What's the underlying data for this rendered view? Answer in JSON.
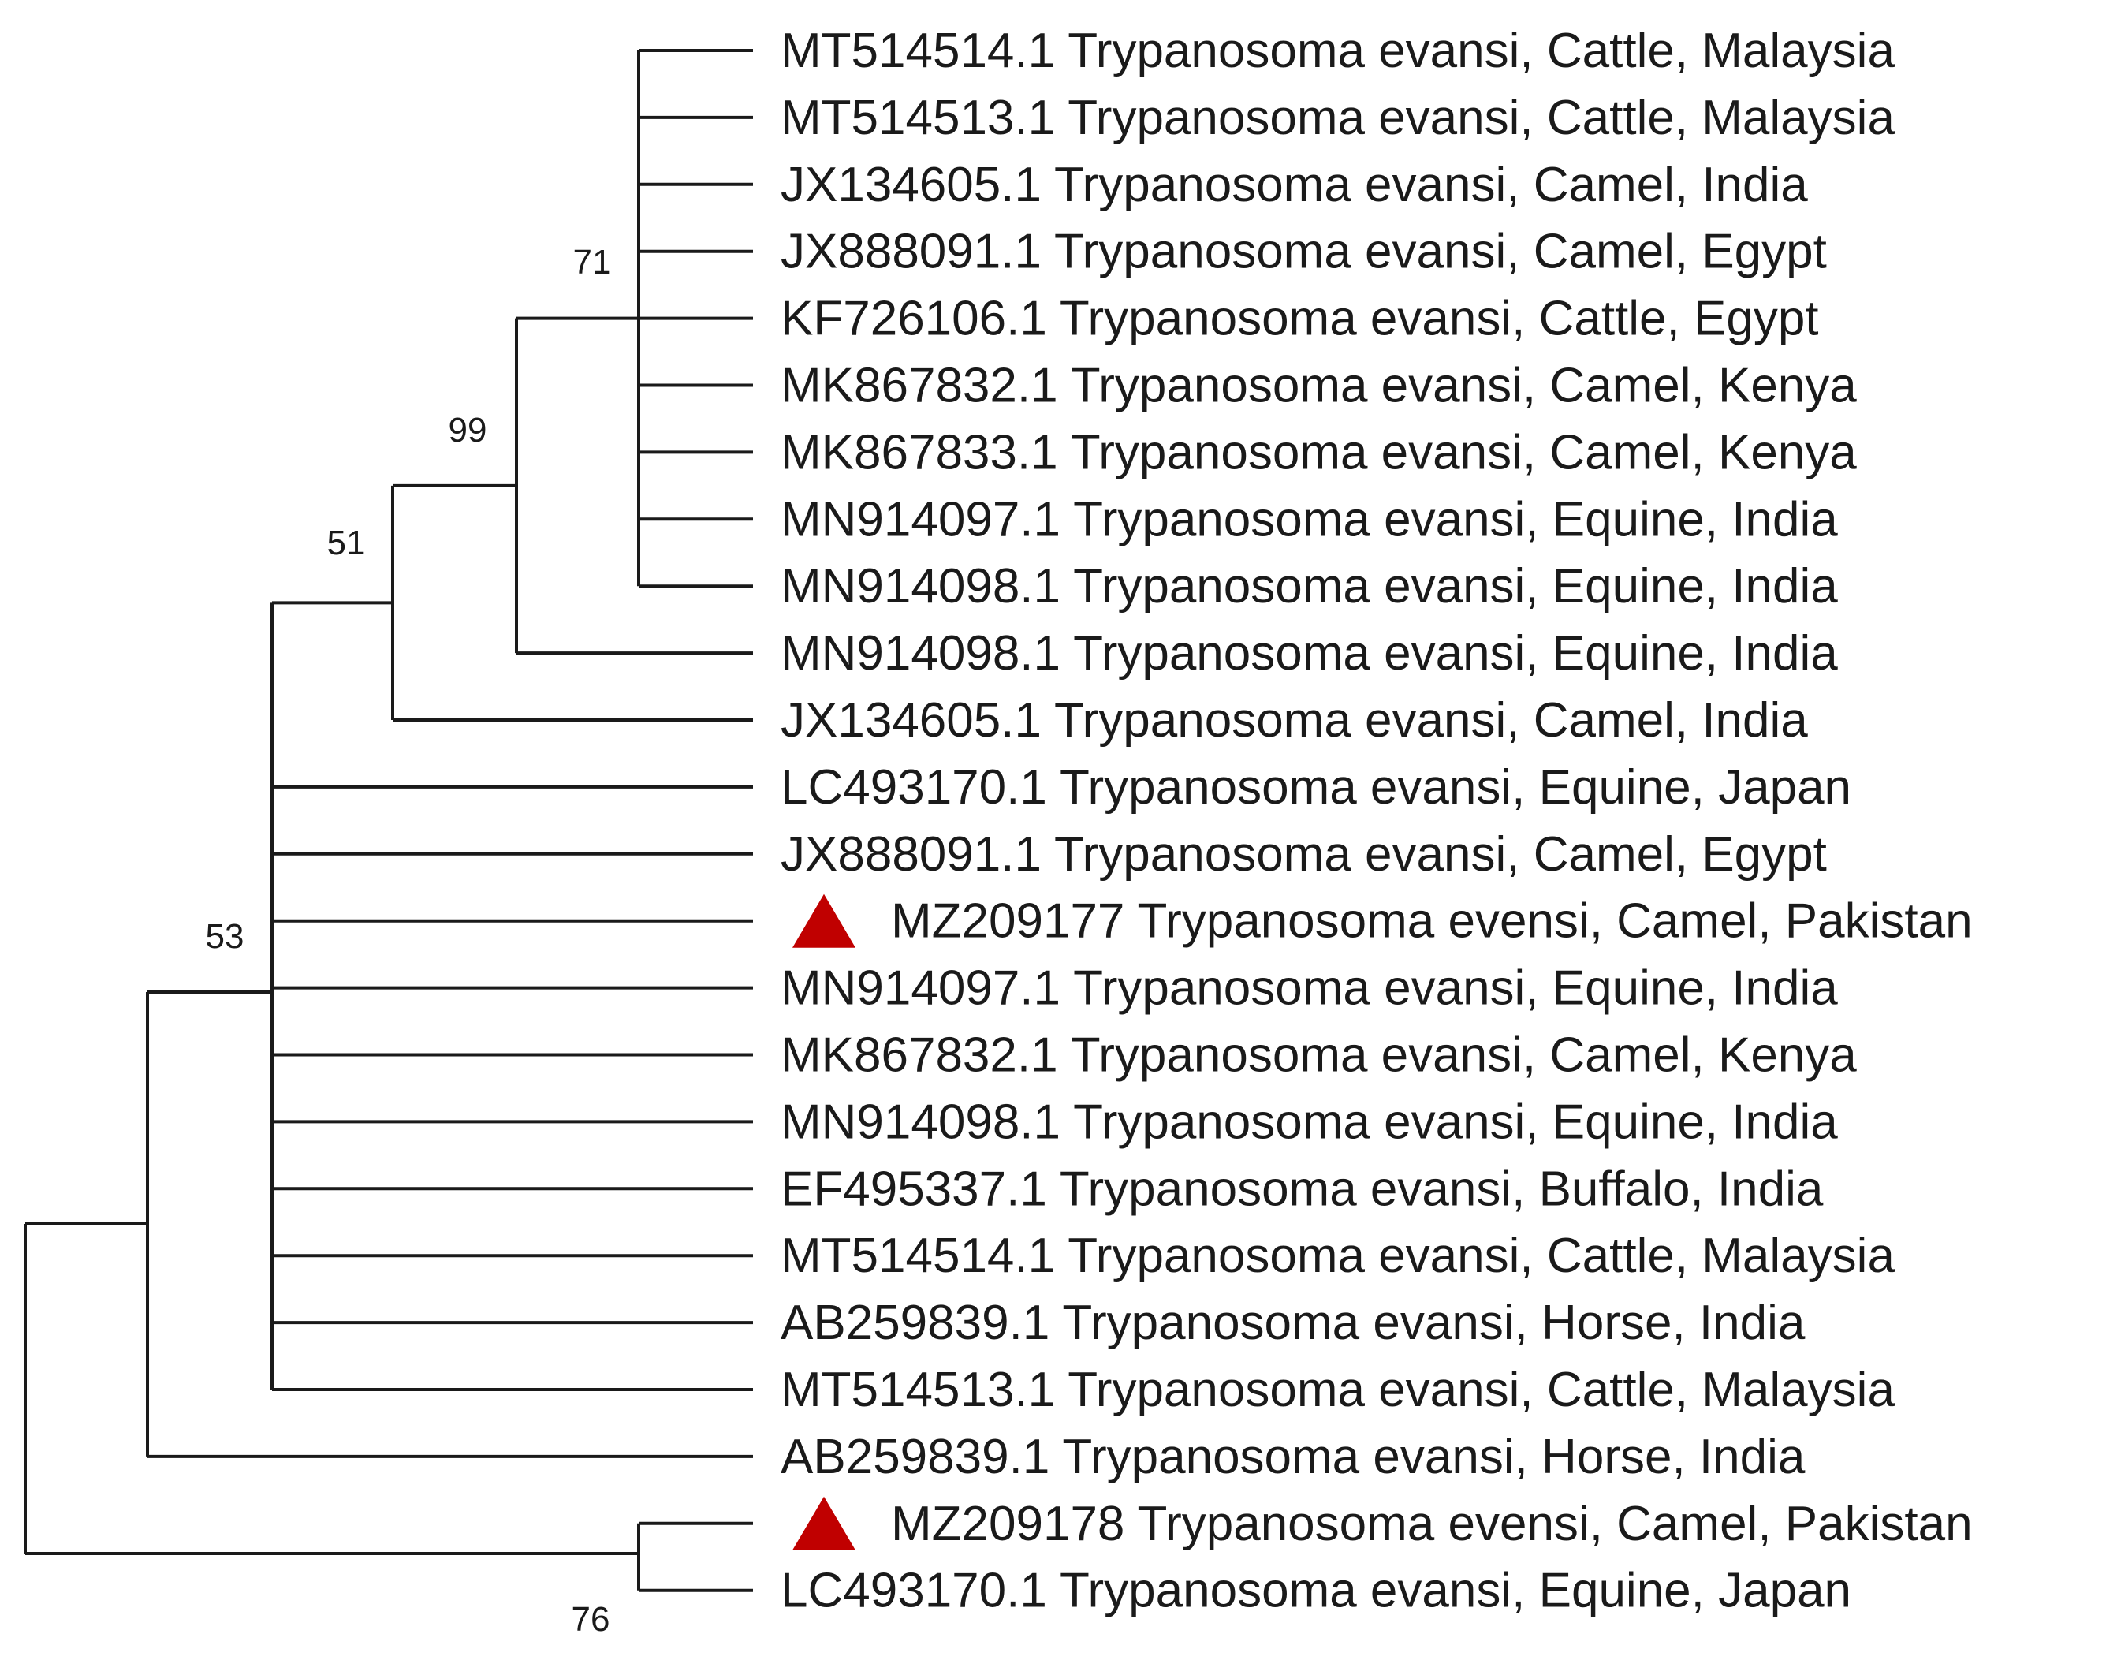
{
  "tree": {
    "marker_color": "#c00000",
    "leaves": [
      {
        "label": "MT514514.1 Trypanosoma evansi, Cattle, Malaysia",
        "marked": false
      },
      {
        "label": "MT514513.1 Trypanosoma evansi, Cattle, Malaysia",
        "marked": false
      },
      {
        "label": "JX134605.1 Trypanosoma evansi, Camel, India",
        "marked": false
      },
      {
        "label": "JX888091.1 Trypanosoma evansi, Camel, Egypt",
        "marked": false
      },
      {
        "label": "KF726106.1 Trypanosoma evansi, Cattle, Egypt",
        "marked": false
      },
      {
        "label": "MK867832.1 Trypanosoma evansi, Camel, Kenya",
        "marked": false
      },
      {
        "label": "MK867833.1 Trypanosoma evansi, Camel, Kenya",
        "marked": false
      },
      {
        "label": "MN914097.1 Trypanosoma evansi, Equine, India",
        "marked": false
      },
      {
        "label": "MN914098.1 Trypanosoma evansi, Equine, India",
        "marked": false
      },
      {
        "label": "MN914098.1 Trypanosoma evansi, Equine, India",
        "marked": false
      },
      {
        "label": "JX134605.1 Trypanosoma evansi, Camel, India",
        "marked": false
      },
      {
        "label": "LC493170.1 Trypanosoma evansi, Equine, Japan",
        "marked": false
      },
      {
        "label": "JX888091.1 Trypanosoma evansi, Camel, Egypt",
        "marked": false
      },
      {
        "label": "MZ209177 Trypanosoma evensi, Camel, Pakistan",
        "marked": true
      },
      {
        "label": "MN914097.1 Trypanosoma evansi, Equine, India",
        "marked": false
      },
      {
        "label": "MK867832.1 Trypanosoma evansi, Camel, Kenya",
        "marked": false
      },
      {
        "label": "MN914098.1 Trypanosoma evansi, Equine, India",
        "marked": false
      },
      {
        "label": "EF495337.1 Trypanosoma evansi, Buffalo, India",
        "marked": false
      },
      {
        "label": "MT514514.1 Trypanosoma evansi, Cattle, Malaysia",
        "marked": false
      },
      {
        "label": "AB259839.1 Trypanosoma evansi, Horse, India",
        "marked": false
      },
      {
        "label": "MT514513.1 Trypanosoma evansi, Cattle, Malaysia",
        "marked": false
      },
      {
        "label": "AB259839.1 Trypanosoma evansi, Horse, India",
        "marked": false
      },
      {
        "label": "MZ209178 Trypanosoma evensi, Camel, Pakistan",
        "marked": true
      },
      {
        "label": "LC493170.1 Trypanosoma evansi, Equine, Japan",
        "marked": false
      }
    ],
    "bootstrap": {
      "clade_71": "71",
      "clade_99": "99",
      "clade_51": "51",
      "clade_53": "53",
      "clade_76": "76"
    }
  }
}
